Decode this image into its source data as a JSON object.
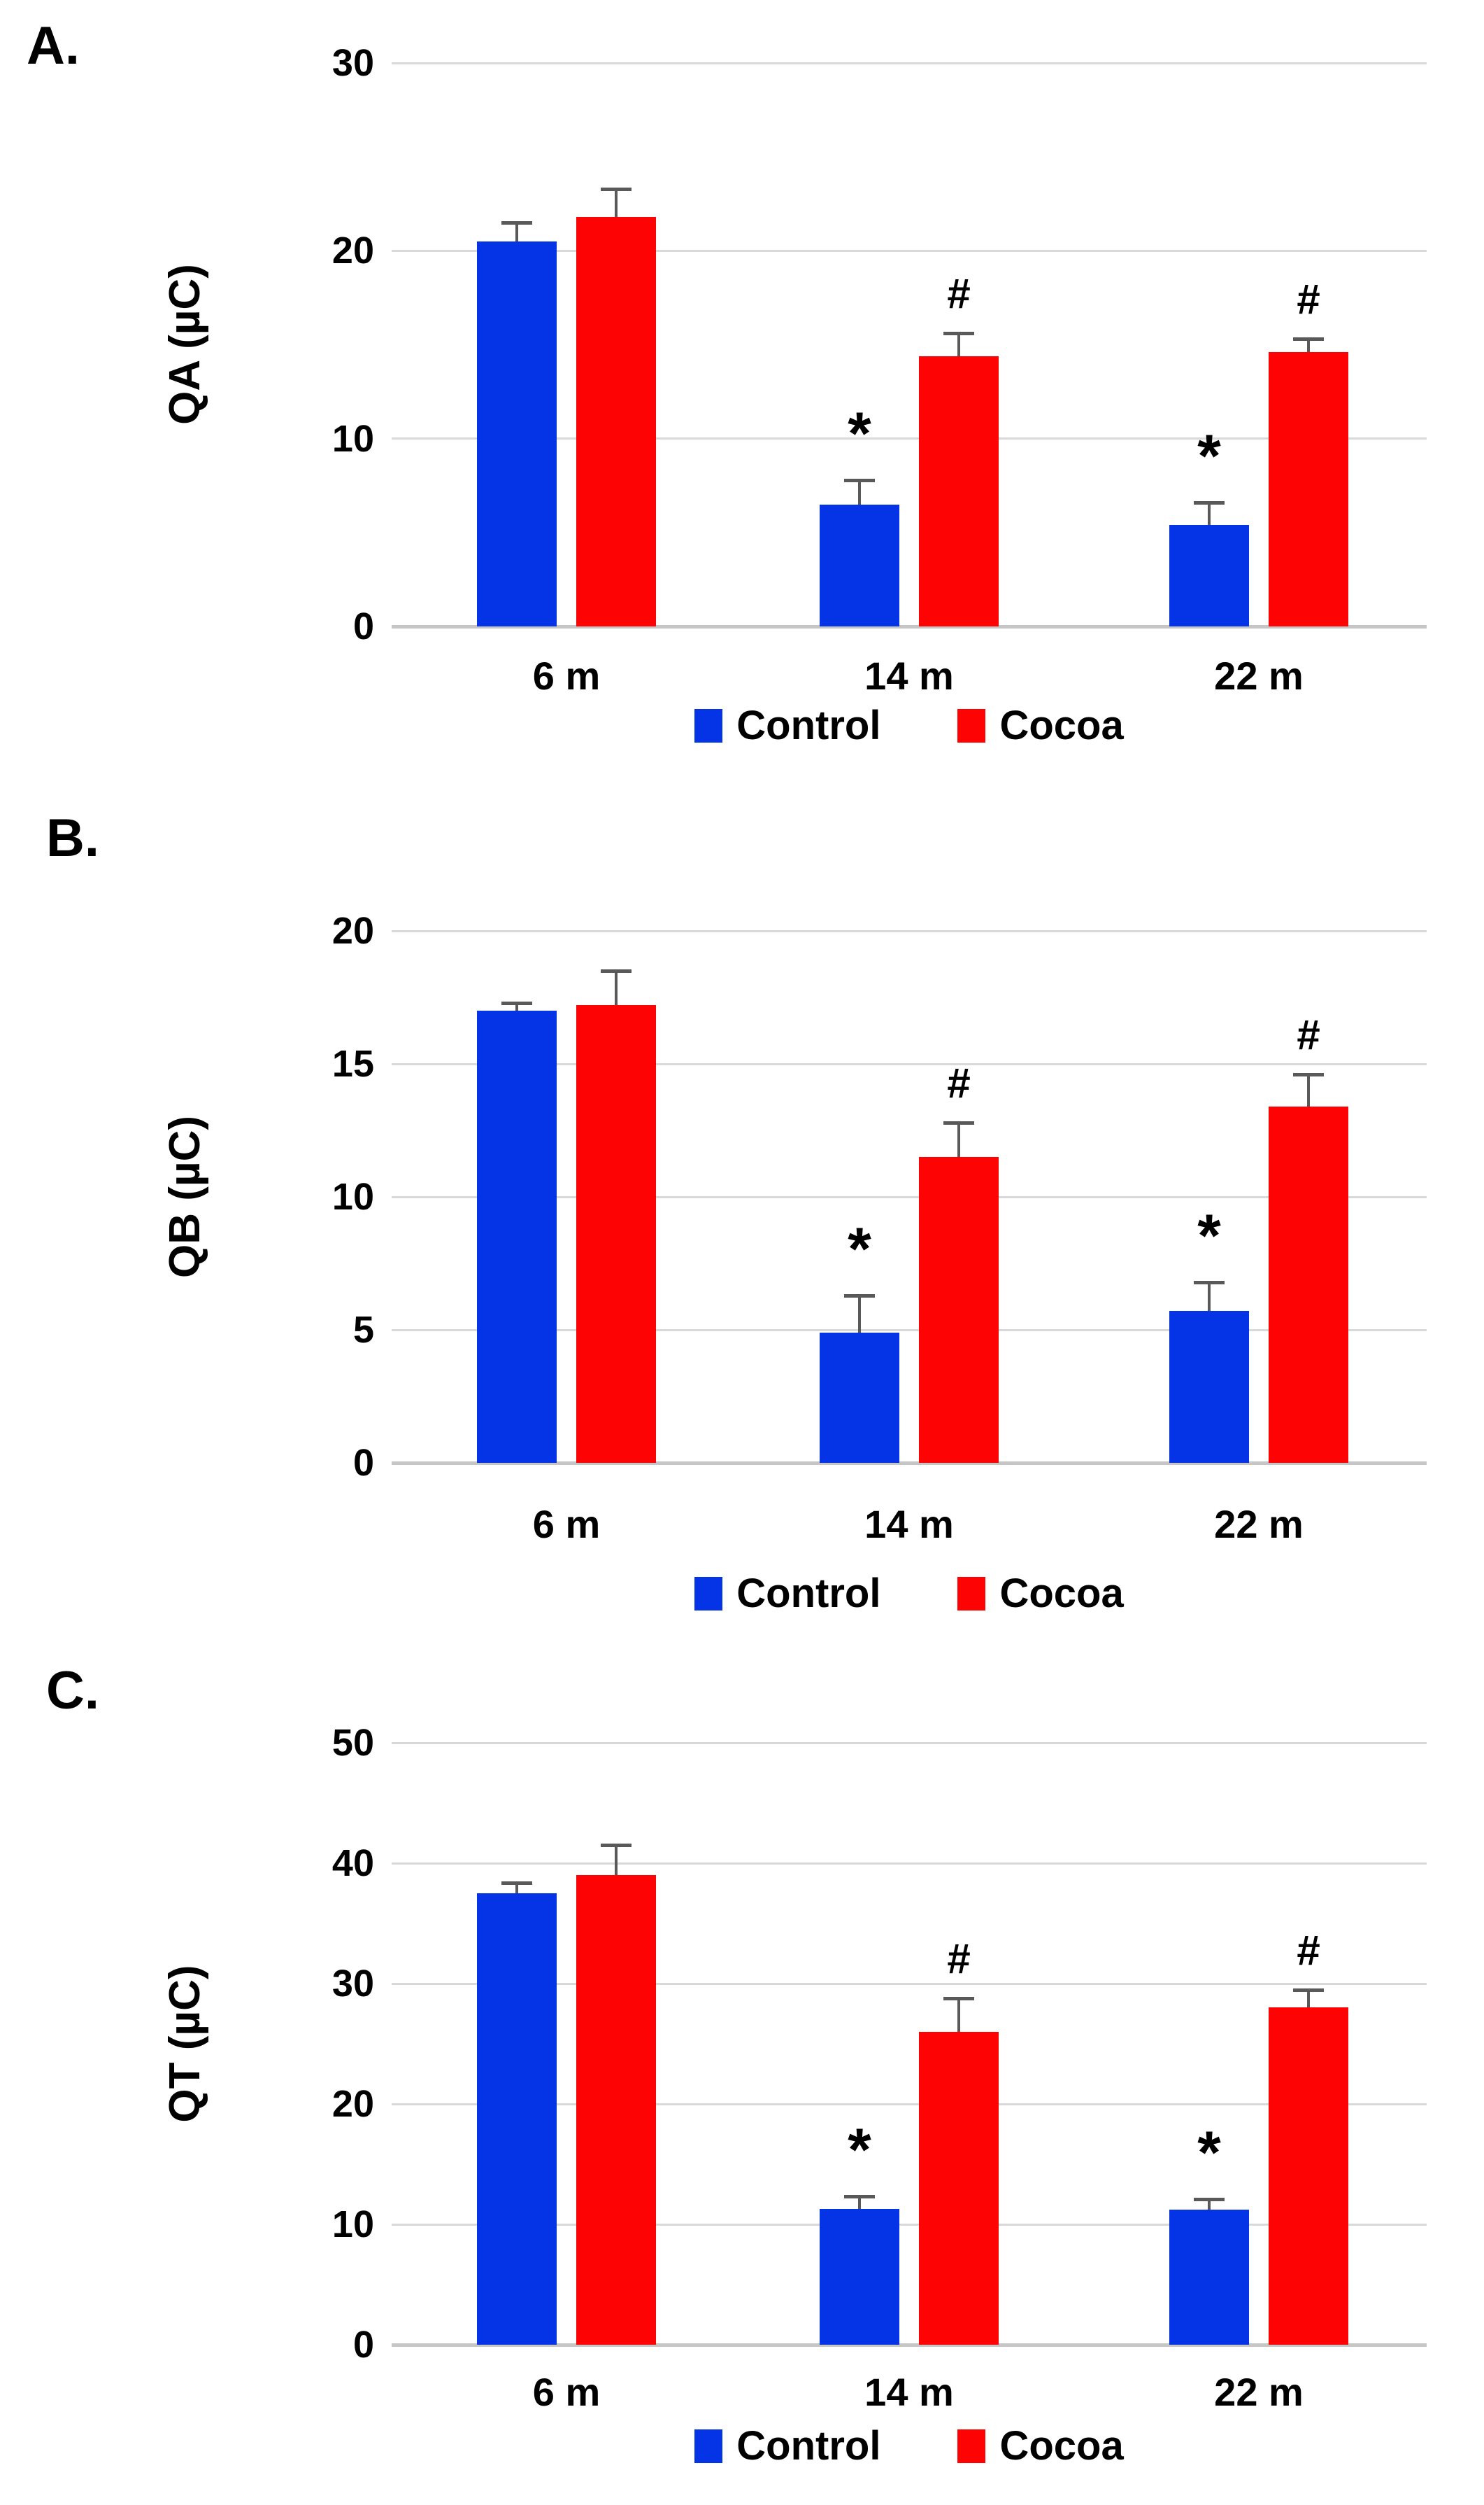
{
  "figure_title": "",
  "colors": {
    "control": "#0534e6",
    "cocoa": "#fd0303",
    "error_bar": "#595959",
    "gridline": "#d9d9d9",
    "axis_line": "#c6c6c6",
    "text": "#000000"
  },
  "legend": {
    "items": [
      {
        "label": "Control",
        "color": "#0534e6"
      },
      {
        "label": "Cocoa",
        "color": "#fd0303"
      }
    ]
  },
  "chart_data": [
    {
      "type": "bar",
      "panel_label": "A.",
      "title": "",
      "xlabel": "",
      "ylabel": "QA (µC)",
      "ylim": [
        0,
        30
      ],
      "yticks": [
        0,
        10,
        20,
        30
      ],
      "grid": true,
      "legend_position": "bottom",
      "categories": [
        "6 m",
        "14 m",
        "22 m"
      ],
      "series": [
        {
          "name": "Control",
          "color": "#0534e6",
          "values": [
            20.5,
            6.5,
            5.4
          ],
          "errors_up": [
            1.0,
            1.3,
            1.2
          ],
          "annotations": [
            "",
            "*",
            "*"
          ]
        },
        {
          "name": "Cocoa",
          "color": "#fd0303",
          "values": [
            21.8,
            14.4,
            14.6
          ],
          "errors_up": [
            1.5,
            1.2,
            0.7
          ],
          "annotations": [
            "",
            "#",
            "#"
          ]
        }
      ]
    },
    {
      "type": "bar",
      "panel_label": "B.",
      "title": "",
      "xlabel": "",
      "ylabel": "QB (µC)",
      "ylim": [
        0,
        20
      ],
      "yticks": [
        0,
        5,
        10,
        15,
        20
      ],
      "grid": true,
      "legend_position": "bottom",
      "categories": [
        "6 m",
        "14 m",
        "22 m"
      ],
      "series": [
        {
          "name": "Control",
          "color": "#0534e6",
          "values": [
            17.0,
            4.9,
            5.7
          ],
          "errors_up": [
            0.3,
            1.4,
            1.1
          ],
          "annotations": [
            "",
            "*",
            "*"
          ]
        },
        {
          "name": "Cocoa",
          "color": "#fd0303",
          "values": [
            17.2,
            11.5,
            13.4
          ],
          "errors_up": [
            1.3,
            1.3,
            1.2
          ],
          "annotations": [
            "",
            "#",
            "#"
          ]
        }
      ]
    },
    {
      "type": "bar",
      "panel_label": "C.",
      "title": "",
      "xlabel": "",
      "ylabel": "QT (µC)",
      "ylim": [
        0,
        50
      ],
      "yticks": [
        0,
        10,
        20,
        30,
        40,
        50
      ],
      "grid": true,
      "legend_position": "bottom",
      "categories": [
        "6 m",
        "14 m",
        "22 m"
      ],
      "series": [
        {
          "name": "Control",
          "color": "#0534e6",
          "values": [
            37.5,
            11.3,
            11.2
          ],
          "errors_up": [
            0.9,
            1.0,
            0.9
          ],
          "annotations": [
            "",
            "*",
            "*"
          ]
        },
        {
          "name": "Cocoa",
          "color": "#fd0303",
          "values": [
            39.0,
            26.0,
            28.0
          ],
          "errors_up": [
            2.5,
            2.8,
            1.5
          ],
          "annotations": [
            "",
            "#",
            "#"
          ]
        }
      ]
    }
  ]
}
